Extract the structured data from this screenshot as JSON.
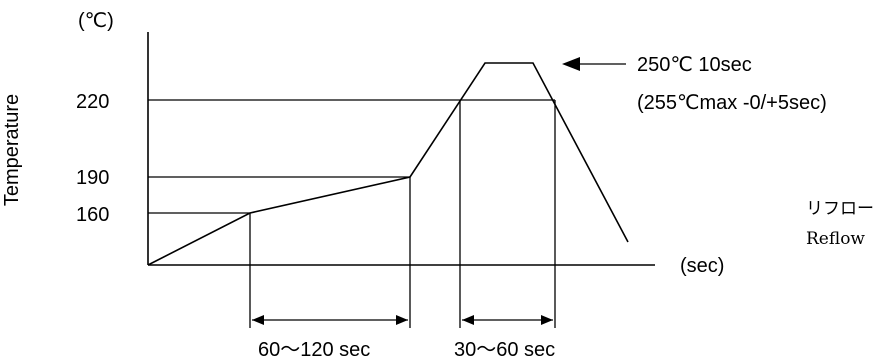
{
  "y_unit": "(℃)",
  "x_unit": "(sec)",
  "y_axis_label": "Temperature",
  "y_ticks": [
    "220",
    "190",
    "160"
  ],
  "peak_note_line1": "250℃  10sec",
  "peak_note_line2": "(255℃max -0/+5sec)",
  "side_note_line1": "リフロー",
  "side_note_line2": "Reflow",
  "preheat_duration": "60～120 sec",
  "reflow_duration": "30～60 sec",
  "colors": {
    "line": "#000000",
    "background": "#ffffff"
  },
  "arrow_icon": "left-arrow"
}
